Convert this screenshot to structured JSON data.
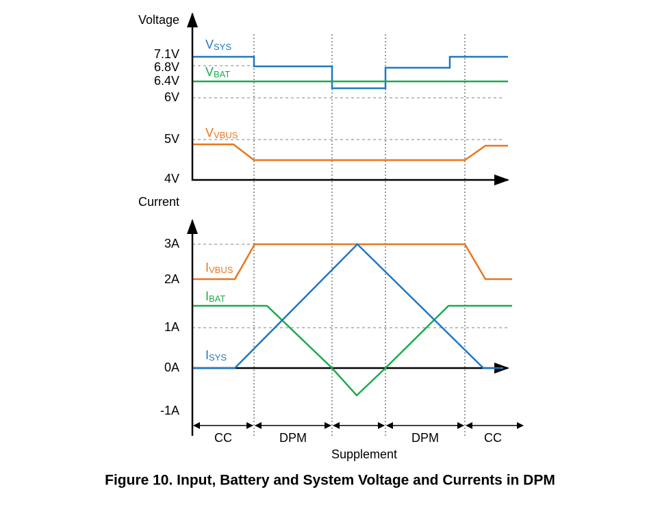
{
  "voltage_panel": {
    "axis_label": "Voltage",
    "ticks": [
      "7.1V",
      "6.8V",
      "6.4V",
      "6V",
      "5V",
      "4V"
    ],
    "signals": [
      {
        "name": "V",
        "subscript": "SYS"
      },
      {
        "name": "V",
        "subscript": "BAT"
      },
      {
        "name": "V",
        "subscript": "VBUS"
      }
    ]
  },
  "current_panel": {
    "axis_label": "Current",
    "ticks": [
      "3A",
      "2A",
      "1A",
      "0A",
      "-1A"
    ],
    "signals": [
      {
        "name": "I",
        "subscript": "VBUS"
      },
      {
        "name": "I",
        "subscript": "BAT"
      },
      {
        "name": "I",
        "subscript": "SYS"
      }
    ]
  },
  "phases": [
    "CC",
    "DPM",
    "DPM",
    "CC"
  ],
  "supplement": "Supplement",
  "caption": "Figure 10. Input, Battery and System Voltage and Currents in DPM"
}
